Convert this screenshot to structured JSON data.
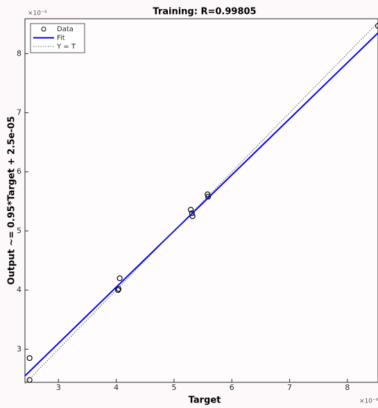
{
  "chart_data": {
    "type": "scatter",
    "title": "Training: R=0.99805",
    "x_label": "Target",
    "y_label": "Output ~= 0.95*Target + 2.5e-05",
    "x_scale_label": "×10⁻⁴",
    "y_scale_label": "×10⁻⁴",
    "xlim": [
      2.42,
      8.53
    ],
    "ylim": [
      2.44,
      8.59
    ],
    "xticks": [
      3,
      4,
      5,
      6,
      7,
      8
    ],
    "yticks": [
      3,
      4,
      5,
      6,
      7,
      8
    ],
    "legend_position": "top-left",
    "series": [
      {
        "name": "Data",
        "style": "markers",
        "color": "#000000",
        "x": [
          2.5,
          2.5,
          4.06,
          4.04,
          4.03,
          5.29,
          5.31,
          5.32,
          5.58,
          5.59,
          8.53
        ],
        "values": [
          2.85,
          2.48,
          4.2,
          4.02,
          4.0,
          5.36,
          5.3,
          5.25,
          5.62,
          5.58,
          8.47
        ]
      },
      {
        "name": "Fit",
        "style": "line",
        "color": "#0000ff",
        "x": [
          2.42,
          8.53
        ],
        "values": [
          2.55,
          8.35
        ]
      },
      {
        "name": "Y = T",
        "style": "dotted",
        "color": "#555555",
        "x": [
          2.42,
          8.53
        ],
        "values": [
          2.42,
          8.53
        ]
      }
    ]
  }
}
